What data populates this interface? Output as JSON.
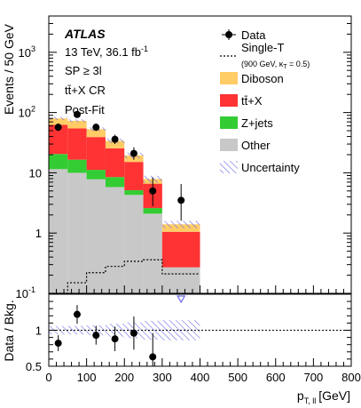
{
  "chart_data": {
    "type": "bar",
    "stacked": true,
    "title_lines": {
      "experiment": "ATLAS",
      "energy": "13 TeV, 36.1 fb",
      "energy_sup": "-1",
      "selection": "SP ≥ 3l",
      "region": "tt̄+X CR",
      "fit": "Post-Fit"
    },
    "main": {
      "ylabel": "Events / 50 GeV",
      "yscale": "log",
      "ylim": [
        0.1,
        4000
      ],
      "yticks": [
        {
          "value": 1000,
          "base": "10",
          "exp": "3"
        },
        {
          "value": 100,
          "base": "10",
          "exp": "2"
        },
        {
          "value": 10,
          "base": "10",
          "exp": ""
        },
        {
          "value": 1,
          "base": "1",
          "exp": ""
        },
        {
          "value": 0.1,
          "base": "10",
          "exp": "-1"
        }
      ]
    },
    "ratio": {
      "ylabel": "Data / Bkg.",
      "ylim": [
        0.5,
        1.5
      ],
      "yticks": [
        {
          "value": 0.5,
          "label": "0.5"
        },
        {
          "value": 1,
          "label": "1"
        }
      ],
      "reference": 1
    },
    "x": {
      "label": "p",
      "label_sub": "T, ll",
      "label_unit": "[GeV]",
      "xlim": [
        0,
        800
      ],
      "ticks": [
        0,
        100,
        200,
        300,
        400,
        500,
        600,
        700,
        800
      ]
    },
    "bins": [
      {
        "lo": 0,
        "hi": 50
      },
      {
        "lo": 50,
        "hi": 100
      },
      {
        "lo": 100,
        "hi": 150
      },
      {
        "lo": 150,
        "hi": 200
      },
      {
        "lo": 200,
        "hi": 250
      },
      {
        "lo": 250,
        "hi": 300
      },
      {
        "lo": 300,
        "hi": 400
      }
    ],
    "series": [
      {
        "key": "other",
        "name": "Other",
        "color": "#c8c8c8",
        "values": [
          11.5,
          10,
          7.8,
          5.8,
          4.3,
          2.1,
          0.27
        ]
      },
      {
        "key": "zjets",
        "name": "Z+jets",
        "color": "#33cc33",
        "values": [
          9,
          6.5,
          3.4,
          2.7,
          0.85,
          0.5,
          0
        ]
      },
      {
        "key": "ttx",
        "name": "tt̄+X",
        "color": "#ff3333",
        "values": [
          42,
          38,
          28,
          17,
          10,
          4,
          0.78
        ]
      },
      {
        "key": "diboson",
        "name": "Diboson",
        "color": "#ffcc66",
        "values": [
          17.5,
          18.5,
          13.8,
          8.5,
          4.35,
          1.3,
          0.35
        ]
      }
    ],
    "signal": {
      "name": "Single-T",
      "note": "(900 GeV, κ",
      "note_sub": "T",
      "note_end": " = 0.5)",
      "values": [
        0.1,
        0.15,
        0.22,
        0.28,
        0.34,
        0.36,
        0.21
      ]
    },
    "data": {
      "name": "Data",
      "points": [
        {
          "x": 25,
          "y": 57,
          "err_lo": 7.5,
          "err_hi": 8.5
        },
        {
          "x": 75,
          "y": 93,
          "err_lo": 9.5,
          "err_hi": 10.5
        },
        {
          "x": 125,
          "y": 57,
          "err_lo": 7.5,
          "err_hi": 8.5
        },
        {
          "x": 175,
          "y": 36,
          "err_lo": 6,
          "err_hi": 7
        },
        {
          "x": 225,
          "y": 21,
          "err_lo": 4.5,
          "err_hi": 5.5
        },
        {
          "x": 275,
          "y": 5,
          "err_lo": 2.2,
          "err_hi": 3.4
        },
        {
          "x": 350,
          "y": 3.5,
          "err_lo": 1.9,
          "err_hi": 3
        }
      ]
    },
    "ratio_points": [
      {
        "x": 25,
        "y": 0.82,
        "err": 0.11
      },
      {
        "x": 75,
        "y": 1.22,
        "err": 0.13
      },
      {
        "x": 125,
        "y": 0.93,
        "err": 0.13
      },
      {
        "x": 175,
        "y": 0.88,
        "err": 0.17
      },
      {
        "x": 225,
        "y": 0.96,
        "err": 0.23
      },
      {
        "x": 275,
        "y": 0.63,
        "err": 0.33
      }
    ],
    "ratio_arrow": {
      "x": 350,
      "value_above_range": true
    },
    "uncertainty": {
      "name": "Uncertainty",
      "rel": [
        0.06,
        0.06,
        0.07,
        0.09,
        0.11,
        0.13,
        0.14
      ]
    },
    "legend_placement": "top-right"
  }
}
